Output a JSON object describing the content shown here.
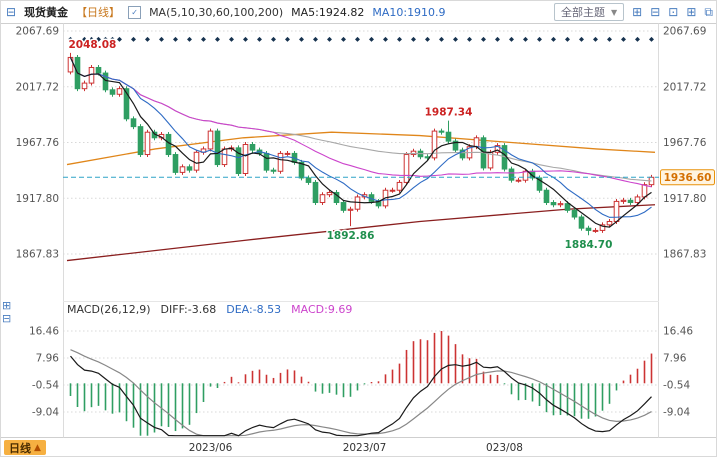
{
  "header": {
    "symbol": "现货黄金",
    "period_tag": "【日线】",
    "ma_settings": "MA(5,10,30,60,100,200)",
    "ma5_label": "MA5:1924.82",
    "ma10_label": "MA10:1910.9",
    "theme_dropdown": "全部主题",
    "dropdown_arrow": "▼"
  },
  "macd_header": {
    "title": "MACD(26,12,9)",
    "diff": "DIFF:-3.68",
    "dea": "DEA:-8.53",
    "macd": "MACD:9.69"
  },
  "footer": {
    "period_label": "日线",
    "arrow": "▲"
  },
  "colors": {
    "up": "#cc3333",
    "down": "#2f9e62",
    "ma5": "#1a1a1a",
    "ma10": "#2e6bc4",
    "ma30": "#cc44cc",
    "ma60": "#a8a8a8",
    "ma100": "#e0861a",
    "ma200": "#8a1f1f",
    "grid": "#d8d8d8",
    "axis_text": "#555555",
    "last_price_line": "#2fa3c7",
    "last_price_tag_border": "#e8920a",
    "last_price_text": "#d46f00",
    "annotation_high": "#cc2222",
    "annotation_low": "#1f8f4d",
    "event_marker": "#16324f"
  },
  "chart_data": {
    "type": "candlestick",
    "title": "现货黄金 【日线】",
    "panels": [
      "price",
      "macd"
    ],
    "y_ticks_main": [
      2067.69,
      2017.72,
      1967.76,
      1917.8,
      1867.83
    ],
    "y_ticks_macd": [
      16.46,
      7.96,
      -0.54,
      -9.04
    ],
    "x_ticks": [
      {
        "label": "2023/06",
        "index": 20
      },
      {
        "label": "2023/07",
        "index": 42
      },
      {
        "label": "023/08",
        "index": 62
      }
    ],
    "first_open": 2031,
    "closes": [
      2044,
      2016,
      2021,
      2035,
      2030,
      2015,
      2011,
      2016,
      1989,
      1982,
      1957,
      1977,
      1972,
      1975,
      1957,
      1941,
      1946,
      1943,
      1959,
      1962,
      1978,
      1948,
      1962,
      1963,
      1940,
      1966,
      1961,
      1958,
      1943,
      1942,
      1958,
      1958,
      1950,
      1936,
      1932,
      1914,
      1921,
      1923,
      1914,
      1907,
      1908,
      1919,
      1921,
      1915,
      1911,
      1925,
      1925,
      1932,
      1957,
      1960,
      1955,
      1954,
      1978,
      1977,
      1969,
      1961,
      1954,
      1964,
      1972,
      1945,
      1959,
      1965,
      1944,
      1934,
      1934,
      1942,
      1936,
      1925,
      1914,
      1912,
      1913,
      1907,
      1901,
      1891,
      1889,
      1889,
      1894,
      1897,
      1915,
      1916,
      1914,
      1919,
      1930,
      1936.6
    ],
    "extremes": [
      {
        "index": 0,
        "type": "high",
        "price": 2048.08,
        "label": "2048.08"
      },
      {
        "index": 40,
        "type": "low",
        "price": 1892.86,
        "label": "1892.86"
      },
      {
        "index": 54,
        "type": "high",
        "price": 1987.34,
        "label": "1987.34"
      },
      {
        "index": 74,
        "type": "low",
        "price": 1884.7,
        "label": "1884.70"
      }
    ],
    "last_price": 1936.6,
    "last_price_label": "1936.60",
    "ma_computed_periods": [
      60,
      30,
      10,
      5
    ],
    "ma100_points": [
      [
        0,
        1948
      ],
      [
        0.15,
        1962
      ],
      [
        0.3,
        1972
      ],
      [
        0.45,
        1977
      ],
      [
        0.6,
        1974
      ],
      [
        0.75,
        1968
      ],
      [
        0.9,
        1962
      ],
      [
        1,
        1959
      ]
    ],
    "ma200_points": [
      [
        0,
        1862
      ],
      [
        0.3,
        1880
      ],
      [
        0.6,
        1897
      ],
      [
        0.85,
        1908
      ],
      [
        1,
        1912
      ]
    ],
    "indicator": {
      "name": "MACD",
      "params": [
        26,
        12,
        9
      ],
      "diff": -3.68,
      "dea": -8.53,
      "macd": 9.69
    },
    "event_marker_indices": [
      0,
      2,
      3,
      4,
      5,
      6,
      7,
      9,
      11,
      13,
      15,
      17,
      19,
      21,
      23,
      25,
      27,
      29,
      31,
      33,
      35,
      37,
      39,
      41,
      43,
      45,
      47,
      49,
      51,
      53,
      55,
      57,
      59,
      61,
      63,
      65,
      67,
      69,
      71,
      73,
      75,
      77,
      79,
      81,
      83
    ]
  }
}
